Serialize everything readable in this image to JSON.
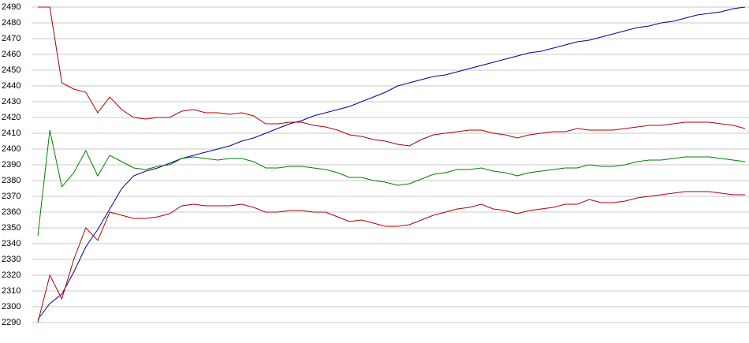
{
  "chart_data": {
    "type": "line",
    "ylim": [
      2290,
      2490
    ],
    "yticks": [
      2290,
      2300,
      2310,
      2320,
      2330,
      2340,
      2350,
      2360,
      2370,
      2380,
      2390,
      2400,
      2410,
      2420,
      2430,
      2440,
      2450,
      2460,
      2470,
      2480,
      2490
    ],
    "grid": true,
    "series": [
      {
        "color": "#0000a0",
        "values": [
          2292,
          2302,
          2308,
          2322,
          2338,
          2349,
          2362,
          2375,
          2383,
          2386,
          2388,
          2391,
          2394,
          2396,
          2398,
          2400,
          2402,
          2405,
          2407,
          2410,
          2413,
          2416,
          2418,
          2421,
          2423,
          2425,
          2427,
          2430,
          2433,
          2436,
          2440,
          2442,
          2444,
          2446,
          2447,
          2449,
          2451,
          2453,
          2455,
          2457,
          2459,
          2461,
          2462,
          2464,
          2466,
          2468,
          2469,
          2471,
          2473,
          2475,
          2477,
          2478,
          2480,
          2481,
          2483,
          2485,
          2486,
          2487,
          2489,
          2490
        ]
      },
      {
        "color": "#b00000",
        "values": [
          2490,
          2490,
          2442,
          2438,
          2436,
          2423,
          2433,
          2425,
          2420,
          2419,
          2420,
          2420,
          2424,
          2425,
          2423,
          2423,
          2422,
          2423,
          2421,
          2416,
          2416,
          2417,
          2417,
          2415,
          2414,
          2412,
          2409,
          2408,
          2406,
          2405,
          2403,
          2402,
          2406,
          2409,
          2410,
          2411,
          2412,
          2412,
          2410,
          2409,
          2407,
          2409,
          2410,
          2411,
          2411,
          2413,
          2412,
          2412,
          2412,
          2413,
          2414,
          2415,
          2415,
          2416,
          2417,
          2417,
          2417,
          2416,
          2415,
          2413
        ]
      },
      {
        "color": "#008000",
        "values": [
          2345,
          2412,
          2376,
          2385,
          2399,
          2383,
          2396,
          2392,
          2388,
          2387,
          2389,
          2390,
          2394,
          2395,
          2394,
          2393,
          2394,
          2394,
          2392,
          2388,
          2388,
          2389,
          2389,
          2388,
          2387,
          2385,
          2382,
          2382,
          2380,
          2379,
          2377,
          2378,
          2381,
          2384,
          2385,
          2387,
          2387,
          2388,
          2386,
          2385,
          2383,
          2385,
          2386,
          2387,
          2388,
          2388,
          2390,
          2389,
          2389,
          2390,
          2392,
          2393,
          2393,
          2394,
          2395,
          2395,
          2395,
          2394,
          2393,
          2392
        ]
      },
      {
        "color": "#b00000",
        "values": [
          2290,
          2320,
          2305,
          2330,
          2350,
          2342,
          2360,
          2358,
          2356,
          2356,
          2357,
          2359,
          2364,
          2365,
          2364,
          2364,
          2364,
          2365,
          2363,
          2360,
          2360,
          2361,
          2361,
          2360,
          2360,
          2357,
          2354,
          2355,
          2353,
          2351,
          2351,
          2352,
          2355,
          2358,
          2360,
          2362,
          2363,
          2365,
          2362,
          2361,
          2359,
          2361,
          2362,
          2363,
          2365,
          2365,
          2368,
          2366,
          2366,
          2367,
          2369,
          2370,
          2371,
          2372,
          2373,
          2373,
          2373,
          2372,
          2371,
          2371
        ]
      }
    ]
  }
}
